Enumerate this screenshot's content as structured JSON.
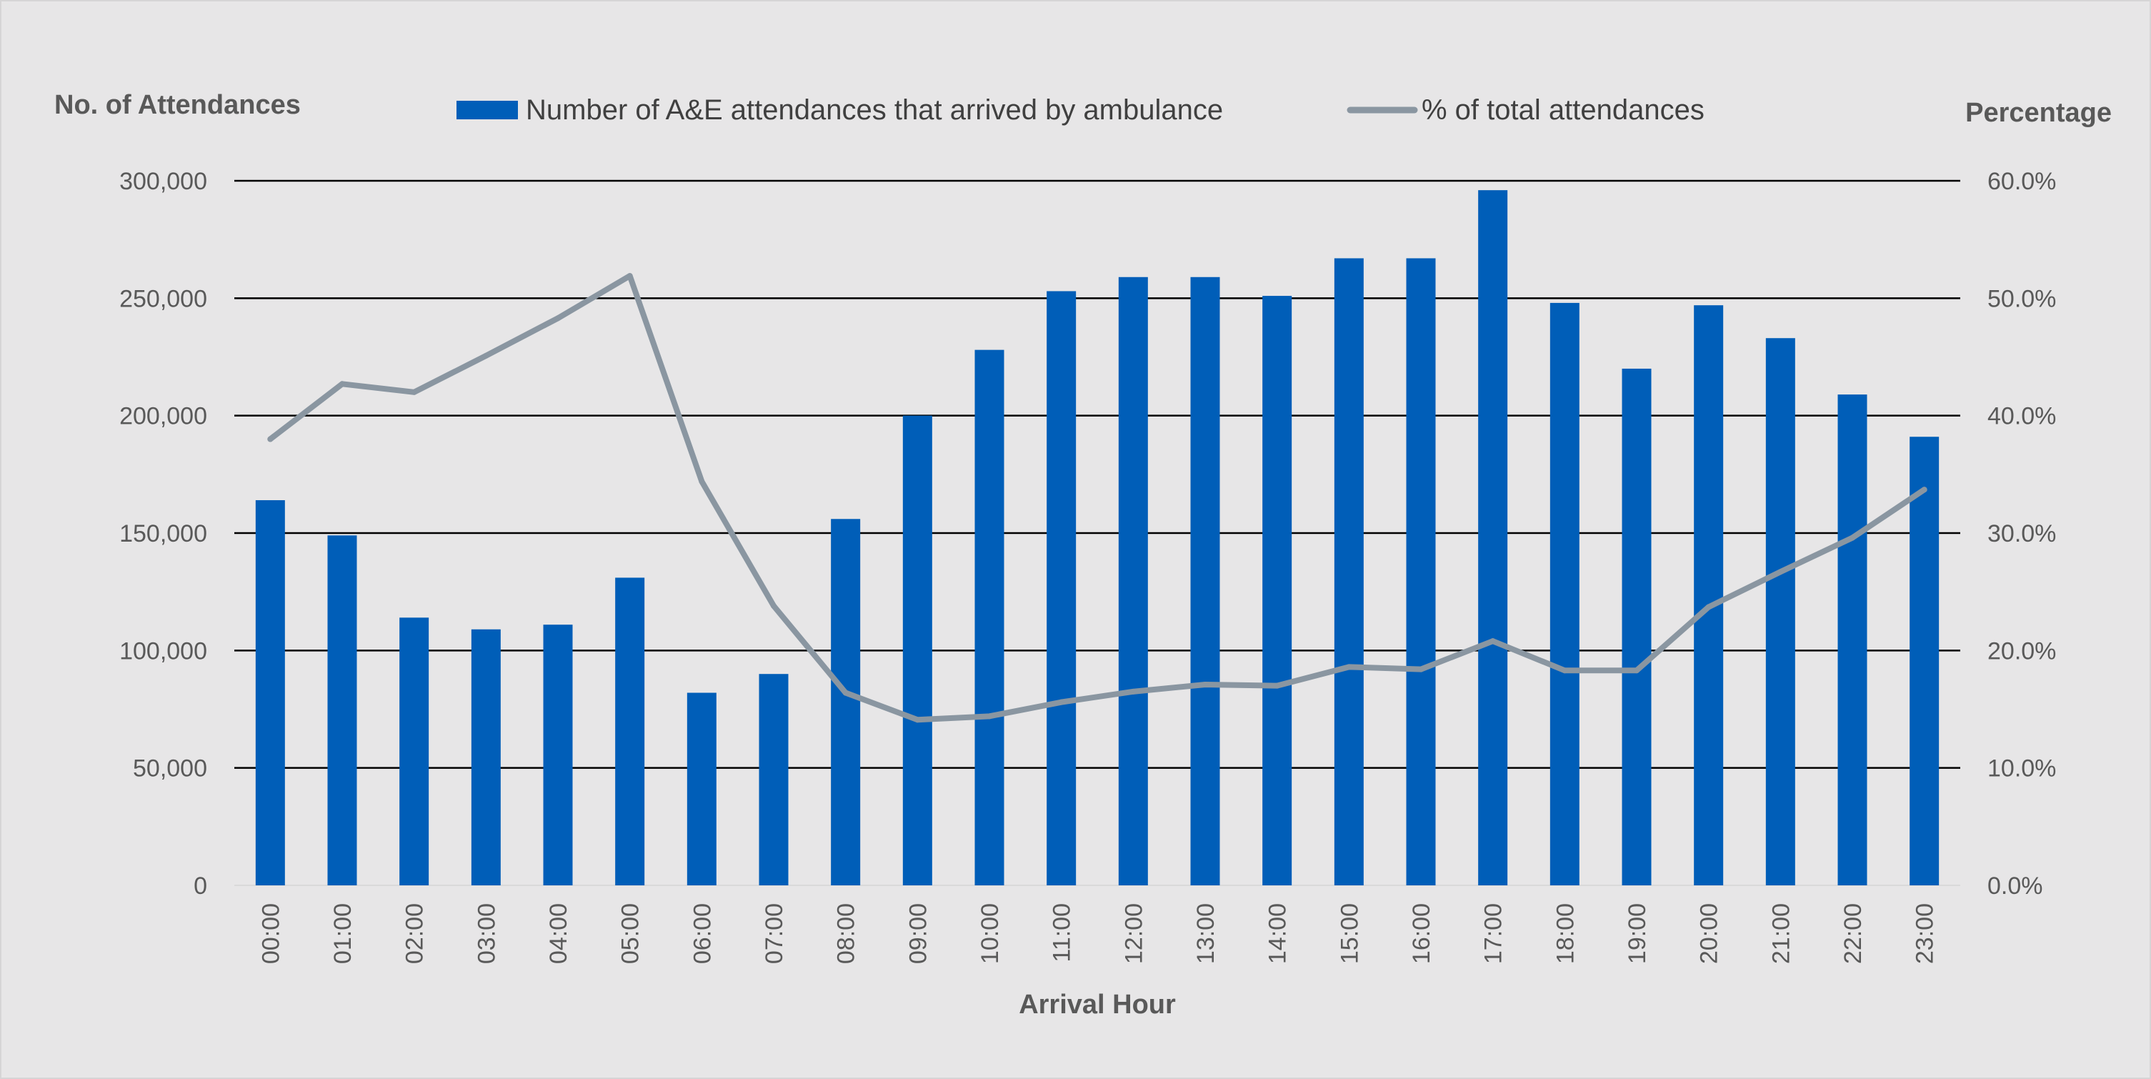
{
  "chart_data": {
    "type": "bar",
    "categories": [
      "00:00",
      "01:00",
      "02:00",
      "03:00",
      "04:00",
      "05:00",
      "06:00",
      "07:00",
      "08:00",
      "09:00",
      "10:00",
      "11:00",
      "12:00",
      "13:00",
      "14:00",
      "15:00",
      "16:00",
      "17:00",
      "18:00",
      "19:00",
      "20:00",
      "21:00",
      "22:00",
      "23:00"
    ],
    "series": [
      {
        "name": "Number of A&E attendances that arrived by ambulance",
        "type": "bar",
        "axis": "left",
        "color": "#005EB8",
        "values": [
          164000,
          149000,
          114000,
          109000,
          111000,
          131000,
          82000,
          90000,
          156000,
          200000,
          228000,
          253000,
          259000,
          259000,
          251000,
          267000,
          267000,
          296000,
          248000,
          220000,
          247000,
          233000,
          209000,
          191000
        ]
      },
      {
        "name": "% of total attendances",
        "type": "line",
        "axis": "right",
        "color": "#8a96a1",
        "values": [
          38.0,
          42.7,
          42.0,
          45.1,
          48.3,
          51.9,
          34.4,
          23.8,
          16.4,
          14.1,
          14.4,
          15.6,
          16.5,
          17.1,
          17.0,
          18.6,
          18.4,
          20.8,
          18.3,
          18.3,
          23.7,
          26.7,
          29.6,
          33.7
        ]
      }
    ],
    "xlabel": "Arrival Hour",
    "ylabel": "No. of Attendances",
    "y2label": "Percentage",
    "ylim": [
      0,
      300000
    ],
    "y2lim": [
      0,
      60
    ],
    "yticks": [
      "0",
      "50,000",
      "100,000",
      "150,000",
      "200,000",
      "250,000",
      "300,000"
    ],
    "y2ticks": [
      "0.0%",
      "10.0%",
      "20.0%",
      "30.0%",
      "40.0%",
      "50.0%",
      "60.0%"
    ],
    "grid": true,
    "legend_position": "top-center"
  }
}
